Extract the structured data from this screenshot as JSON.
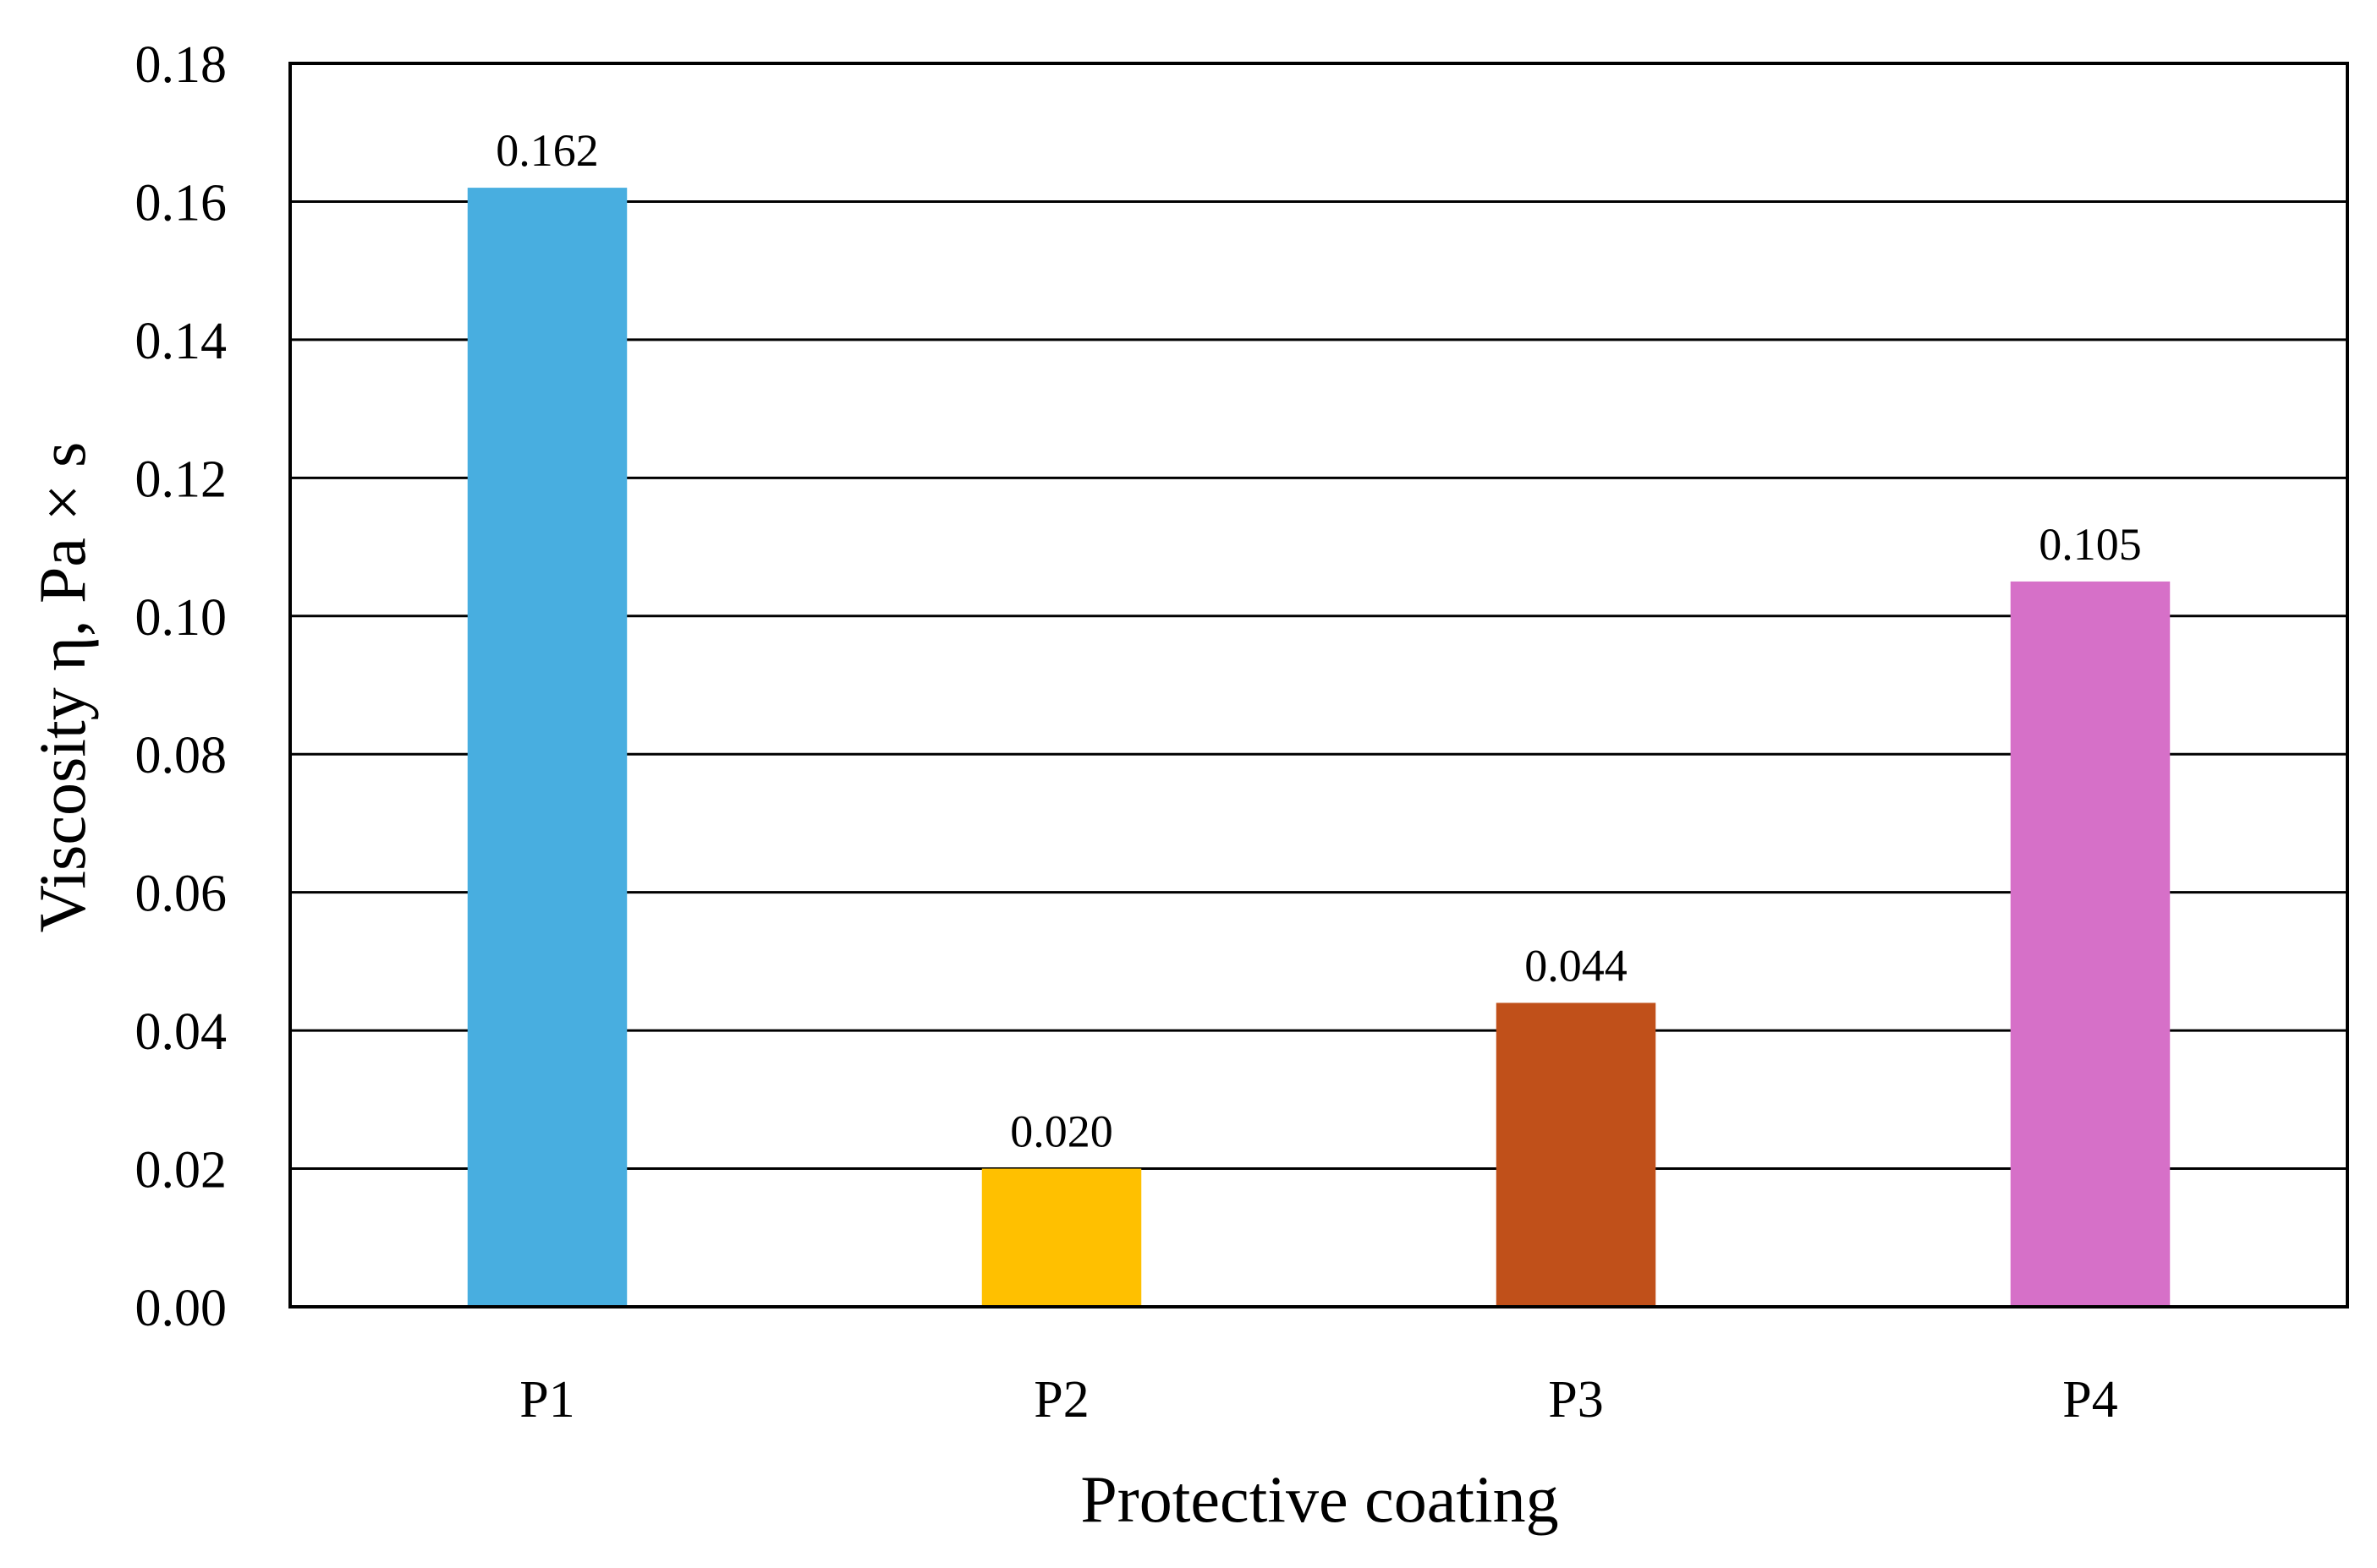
{
  "chart_data": {
    "type": "bar",
    "title": "",
    "xlabel": "Protective coating",
    "ylabel": "Viscosity η, Pa × s",
    "categories": [
      "P1",
      "P2",
      "P3",
      "P4"
    ],
    "values": [
      0.162,
      0.02,
      0.044,
      0.105
    ],
    "data_labels": [
      "0.162",
      "0.020",
      "0.044",
      "0.105"
    ],
    "colors": [
      "#48AEE0",
      "#FFC000",
      "#C0501A",
      "#D670C8"
    ],
    "ylim": [
      0,
      0.18
    ],
    "yticks": [
      0.0,
      0.02,
      0.04,
      0.06,
      0.08,
      0.1,
      0.12,
      0.14,
      0.16,
      0.18
    ],
    "ytick_labels": [
      "0.00",
      "0.02",
      "0.04",
      "0.06",
      "0.08",
      "0.10",
      "0.12",
      "0.14",
      "0.16",
      "0.18"
    ],
    "grid": true,
    "legend": "none"
  }
}
